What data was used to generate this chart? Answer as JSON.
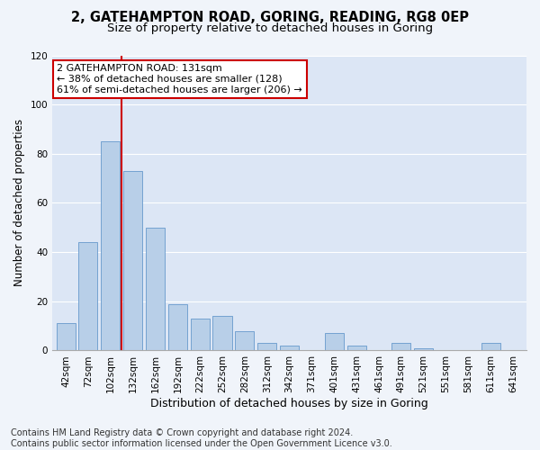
{
  "title1": "2, GATEHAMPTON ROAD, GORING, READING, RG8 0EP",
  "title2": "Size of property relative to detached houses in Goring",
  "xlabel": "Distribution of detached houses by size in Goring",
  "ylabel": "Number of detached properties",
  "categories": [
    "42sqm",
    "72sqm",
    "102sqm",
    "132sqm",
    "162sqm",
    "192sqm",
    "222sqm",
    "252sqm",
    "282sqm",
    "312sqm",
    "342sqm",
    "371sqm",
    "401sqm",
    "431sqm",
    "461sqm",
    "491sqm",
    "521sqm",
    "551sqm",
    "581sqm",
    "611sqm",
    "641sqm"
  ],
  "values": [
    11,
    44,
    85,
    73,
    50,
    19,
    13,
    14,
    8,
    3,
    2,
    0,
    7,
    2,
    0,
    3,
    1,
    0,
    0,
    3,
    0
  ],
  "bar_color": "#b8cfe8",
  "bar_edge_color": "#6699cc",
  "bg_color": "#dce6f5",
  "grid_color": "#ffffff",
  "vline_color": "#cc0000",
  "annotation_text": "2 GATEHAMPTON ROAD: 131sqm\n← 38% of detached houses are smaller (128)\n61% of semi-detached houses are larger (206) →",
  "annotation_box_color": "#ffffff",
  "annotation_box_edge": "#cc0000",
  "footer": "Contains HM Land Registry data © Crown copyright and database right 2024.\nContains public sector information licensed under the Open Government Licence v3.0.",
  "fig_bg": "#f0f4fa",
  "ylim": [
    0,
    120
  ],
  "yticks": [
    0,
    20,
    40,
    60,
    80,
    100,
    120
  ],
  "title1_fontsize": 10.5,
  "title2_fontsize": 9.5,
  "xlabel_fontsize": 9,
  "ylabel_fontsize": 8.5,
  "tick_fontsize": 7.5,
  "annotation_fontsize": 8,
  "footer_fontsize": 7
}
